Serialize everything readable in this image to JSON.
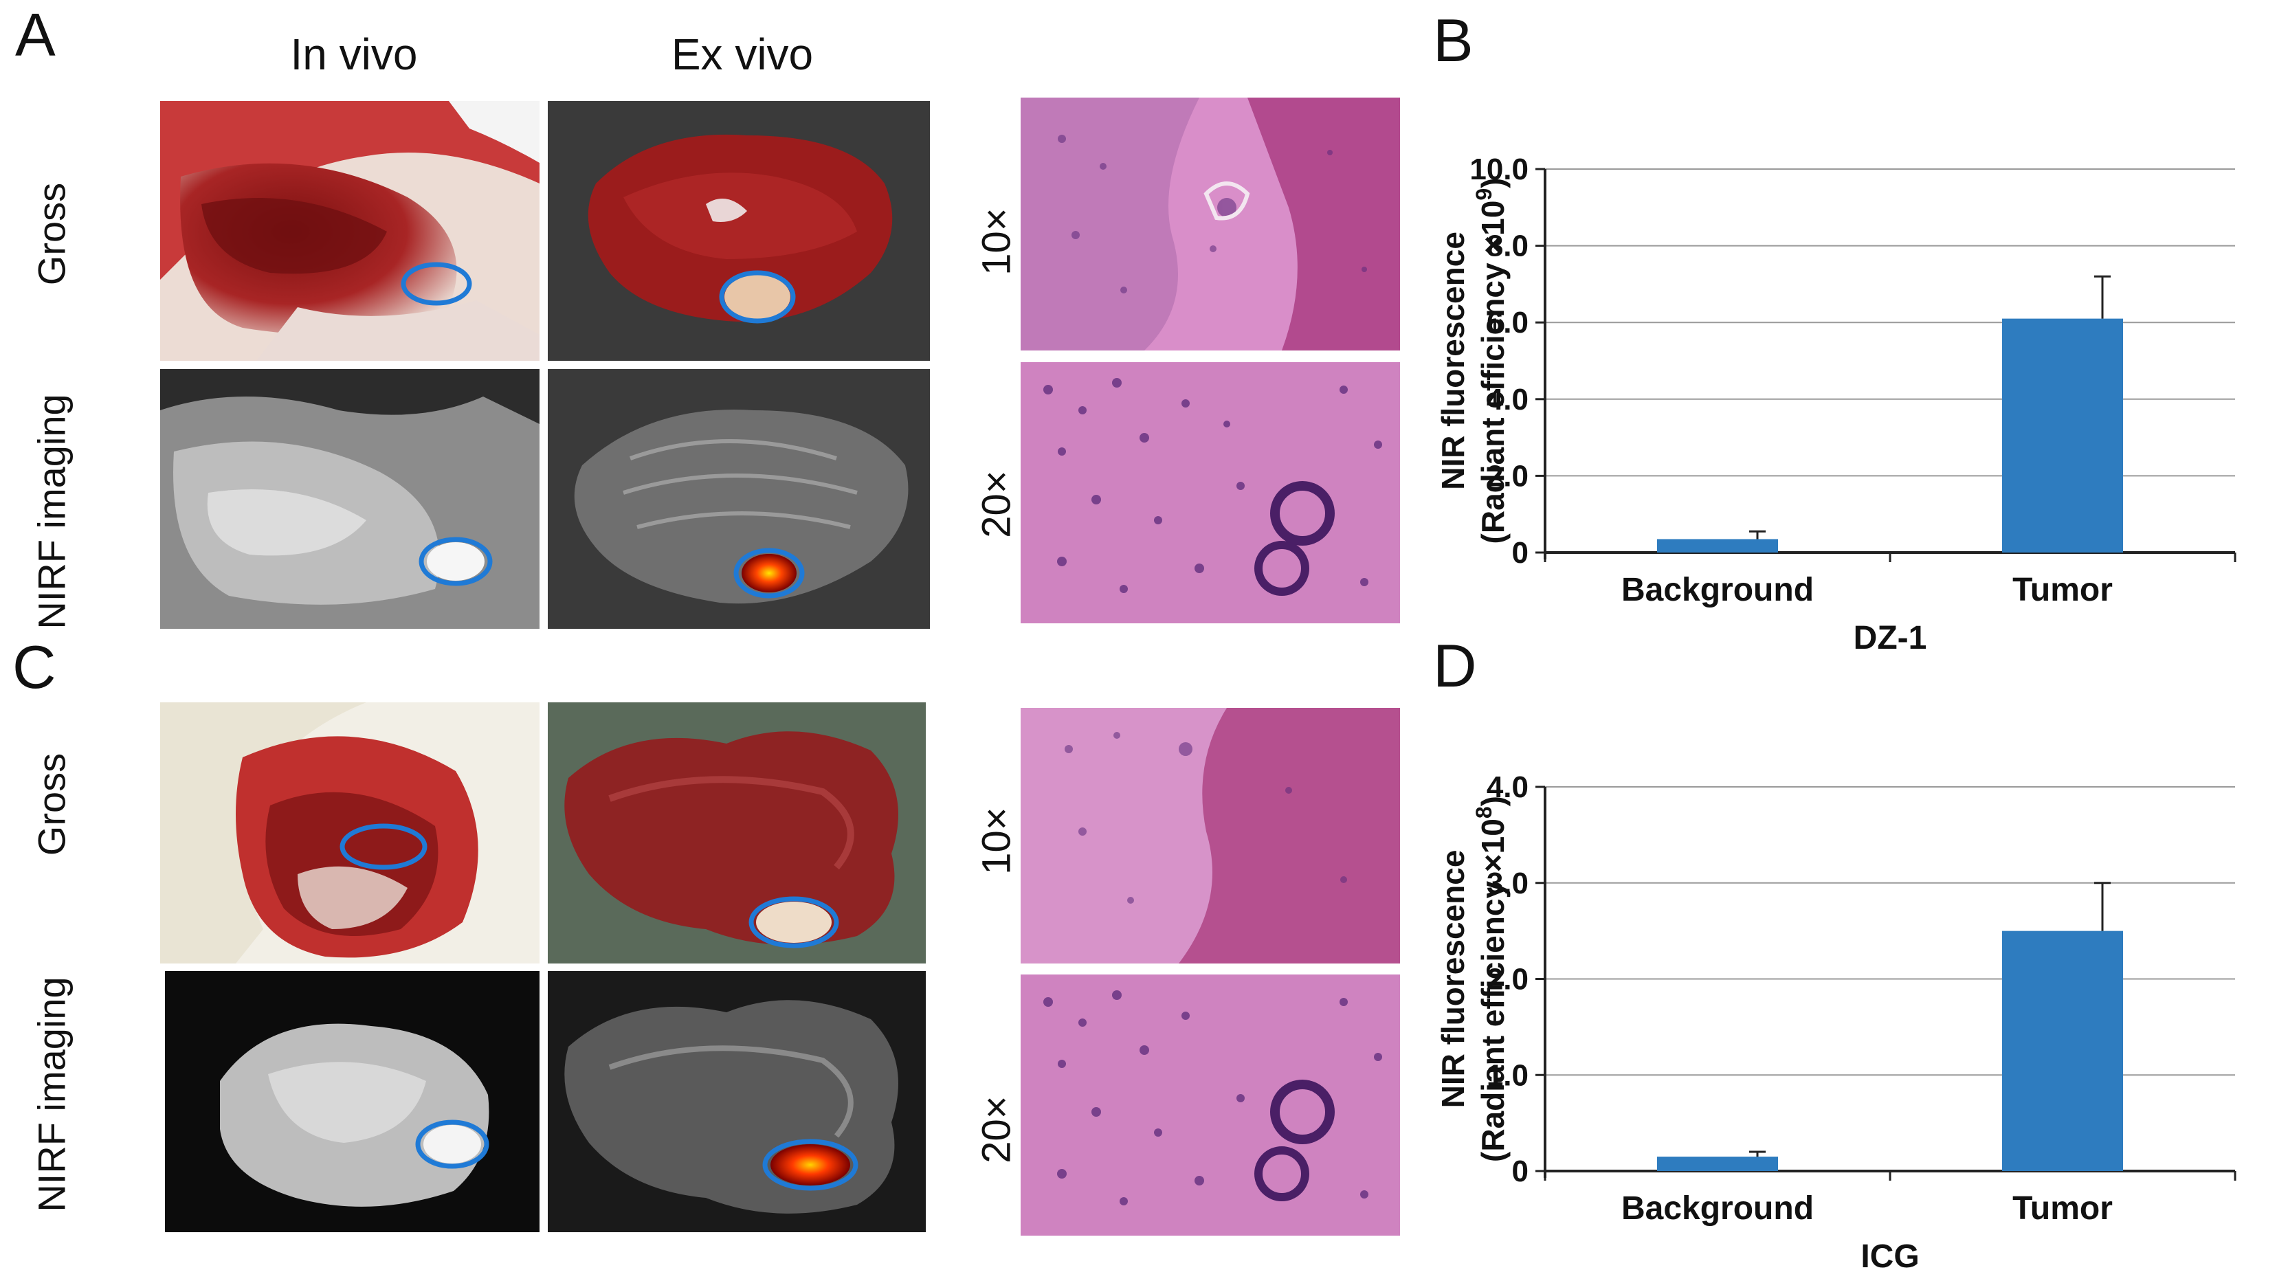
{
  "panels": {
    "A": "A",
    "B": "B",
    "C": "C",
    "D": "D"
  },
  "columns": {
    "in_vivo": "In vivo",
    "ex_vivo": "Ex vivo"
  },
  "rows": {
    "gross": "Gross",
    "nirf": "NIRF imaging"
  },
  "magnifications": {
    "low": "10×",
    "high": "20×"
  },
  "colors": {
    "bar": "#2e7cbf",
    "ellipse": "#1f7ad6",
    "tissue_red": "#9b1c1c",
    "he_pink": "#d98ec9",
    "he_purple": "#5b2a7a"
  },
  "chart_data": [
    {
      "type": "bar",
      "panel": "B",
      "categories": [
        "Background",
        "Tumor"
      ],
      "values": [
        0.35,
        6.1
      ],
      "errors": [
        0.2,
        1.1
      ],
      "xlabel": "DZ-1",
      "ylabel_line1": "NIR fluorescence",
      "ylabel_line2": "(Radiant efficiency ×10",
      "ylabel_exp": "9",
      "ylabel_close": ")",
      "ylim": [
        0,
        10
      ],
      "yticks": [
        "0",
        "2.0",
        "4.0",
        "6.0",
        "8.0",
        "10.0"
      ],
      "ytick_values": [
        0,
        2,
        4,
        6,
        8,
        10
      ],
      "grid": true
    },
    {
      "type": "bar",
      "panel": "D",
      "categories": [
        "Background",
        "Tumor"
      ],
      "values": [
        0.15,
        2.5
      ],
      "errors": [
        0.05,
        0.5
      ],
      "xlabel": "ICG",
      "ylabel_line1": "NIR fluorescence",
      "ylabel_line2": "(Radiant efficiency ×10",
      "ylabel_exp": "8",
      "ylabel_close": ")",
      "ylim": [
        0,
        4
      ],
      "yticks": [
        "0",
        "1.0",
        "2.0",
        "3.0",
        "4.0"
      ],
      "ytick_values": [
        0,
        1,
        2,
        3,
        4
      ],
      "grid": true
    }
  ]
}
